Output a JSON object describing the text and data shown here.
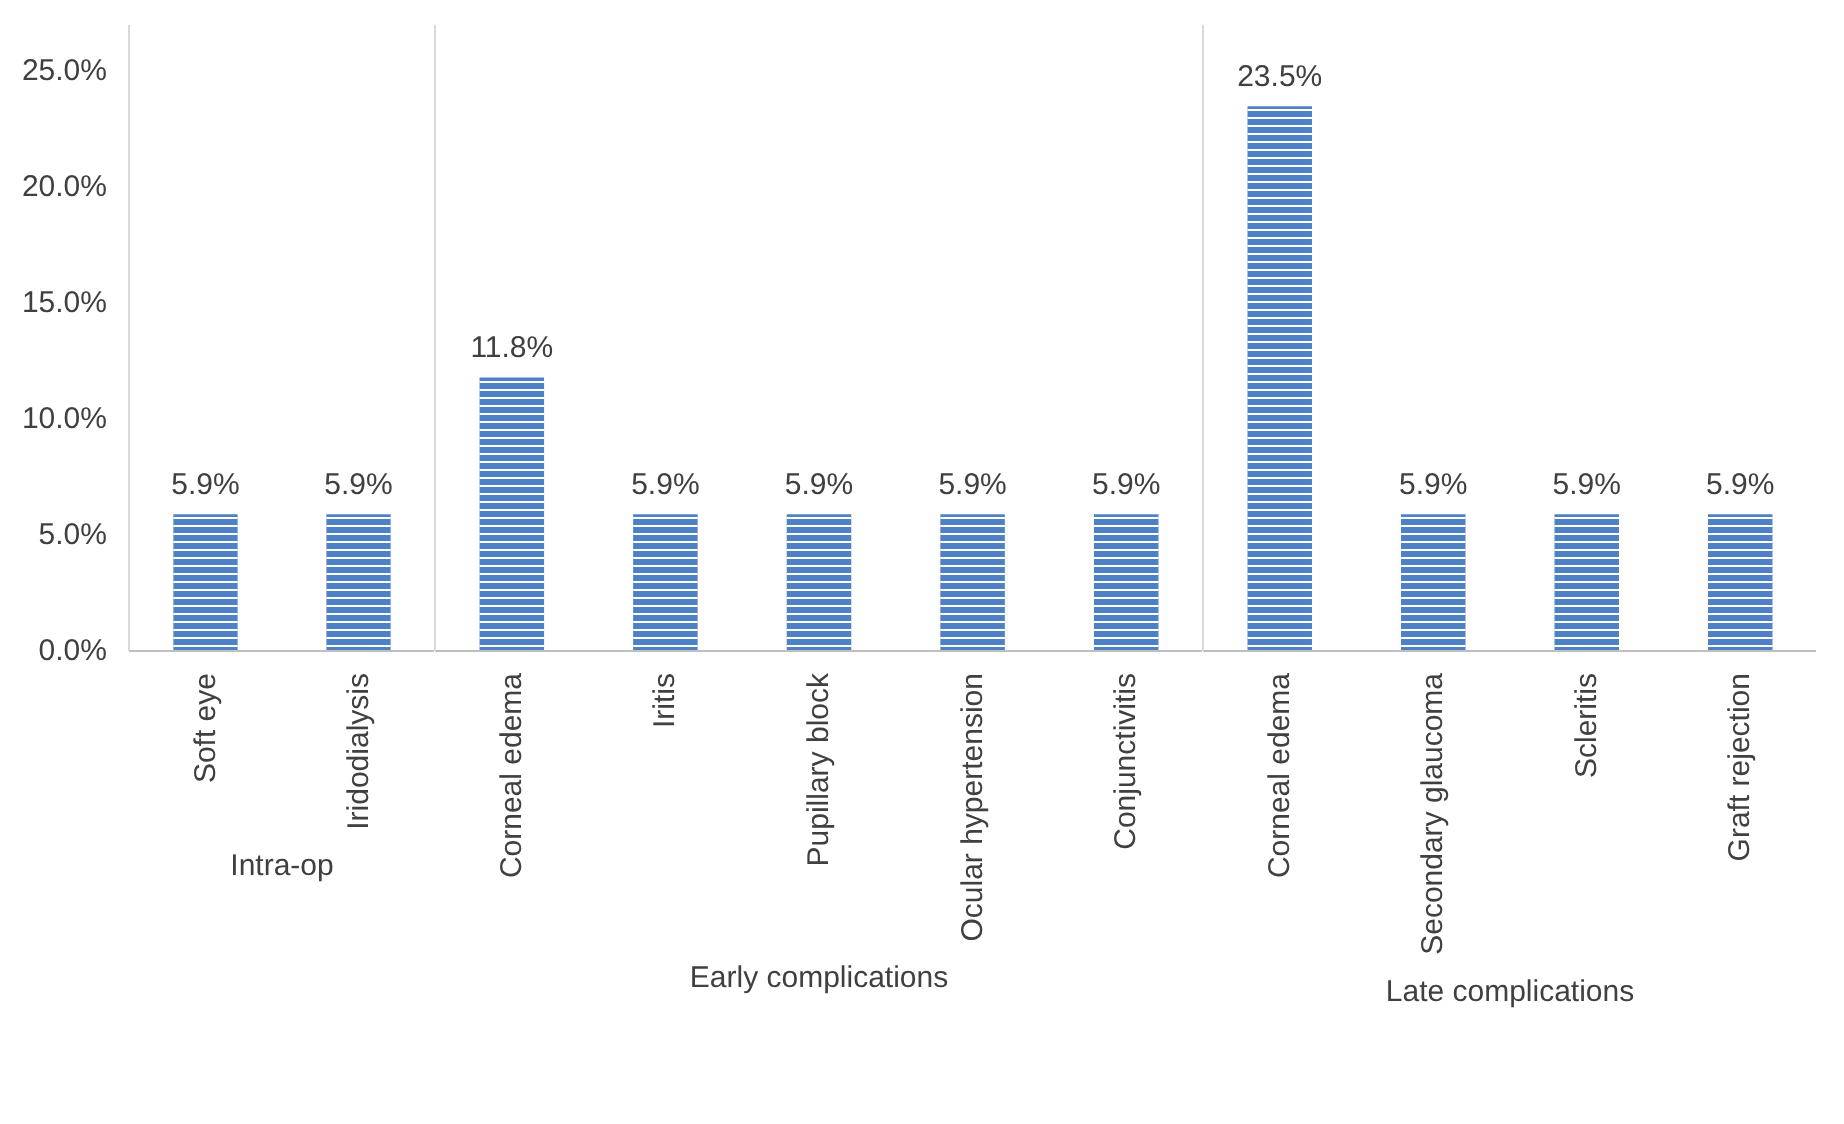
{
  "chart_data": [
    {
      "type": "bar",
      "xlabel": "Intra-op",
      "categories": [
        "Soft eye",
        "Iridodialysis"
      ],
      "values": [
        5.9,
        5.9
      ],
      "value_labels": [
        "5.9%",
        "5.9%"
      ],
      "color": "#4f81c7",
      "ylim": [
        0,
        27
      ],
      "yticks": [
        {
          "value": 0,
          "label": "0.0%"
        },
        {
          "value": 5,
          "label": "5.0%"
        },
        {
          "value": 10,
          "label": "10.0%"
        },
        {
          "value": 15,
          "label": "15.0%"
        },
        {
          "value": 20,
          "label": "20.0%"
        },
        {
          "value": 25,
          "label": "25.0%"
        }
      ]
    },
    {
      "type": "bar",
      "xlabel": "Early complications",
      "categories": [
        "Corneal edema",
        "Iritis",
        "Pupillary block",
        "Ocular hypertension",
        "Conjunctivitis"
      ],
      "values": [
        11.8,
        5.9,
        5.9,
        5.9,
        5.9
      ],
      "value_labels": [
        "11.8%",
        "5.9%",
        "5.9%",
        "5.9%",
        "5.9%"
      ],
      "color": "#4f81c7",
      "ylim": [
        0,
        27
      ],
      "tick_labels": "x"
    },
    {
      "type": "bar",
      "xlabel": "Late complications",
      "categories": [
        "Corneal edema",
        "Secondary glaucoma",
        "Scleritis",
        "Graft rejection"
      ],
      "values": [
        23.5,
        5.9,
        5.9,
        5.9
      ],
      "value_labels": [
        "23.5%",
        "5.9%",
        "5.9%",
        "5.9%"
      ],
      "color": "#4f81c7",
      "ylim": [
        0,
        27
      ],
      "tick_labels": "x"
    }
  ]
}
